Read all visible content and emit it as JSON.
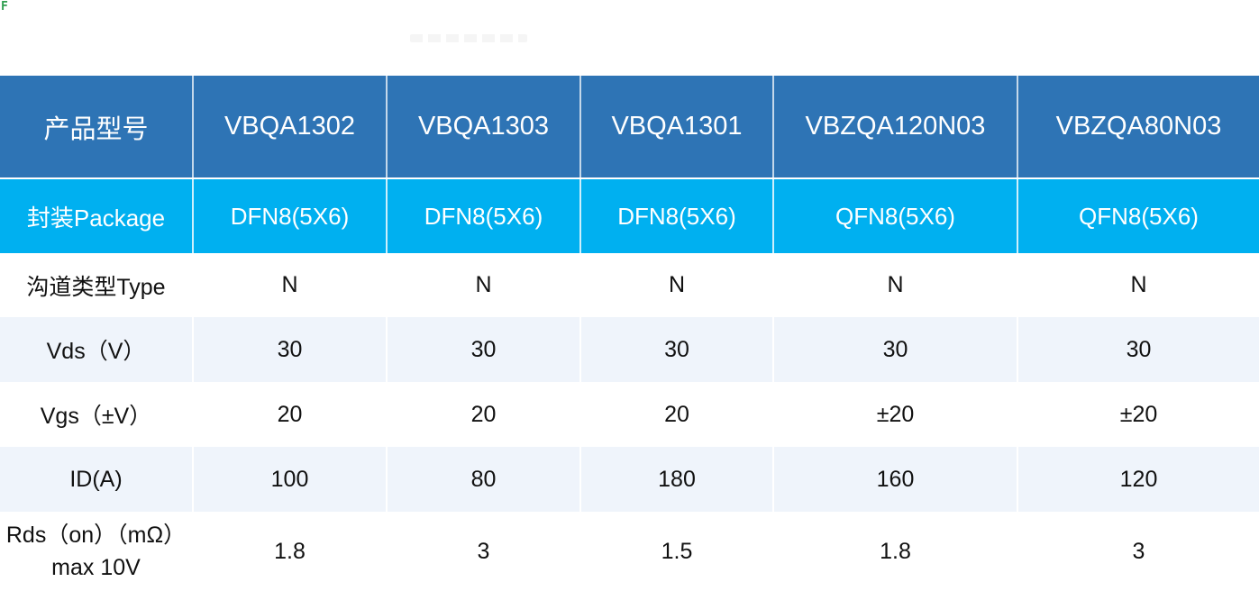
{
  "page": {
    "corner_mark": "F",
    "background": "#FFFFFF"
  },
  "colors": {
    "header_bg": "#2E74B5",
    "header_text": "#FFFFFF",
    "package_bg": "#00B0F0",
    "package_text": "#FFFFFF",
    "stripe_bg": "#EFF4FB",
    "white_row_bg": "#FFFFFF",
    "body_text": "#111111",
    "separator": "#FFFFFF",
    "corner_mark_color": "#2E9E4F"
  },
  "table": {
    "columns": [
      {
        "header": "产品型号"
      },
      {
        "header": "VBQA1302"
      },
      {
        "header": "VBQA1303"
      },
      {
        "header": "VBQA1301"
      },
      {
        "header": "VBZQA120N03"
      },
      {
        "header": "VBZQA80N03"
      }
    ],
    "rows": [
      {
        "label": "封装Package",
        "values": [
          "DFN8(5X6)",
          "DFN8(5X6)",
          "DFN8(5X6)",
          "QFN8(5X6)",
          "QFN8(5X6)"
        ]
      },
      {
        "label": "沟道类型Type",
        "values": [
          "N",
          "N",
          "N",
          "N",
          "N"
        ]
      },
      {
        "label": "Vds（V）",
        "values": [
          "30",
          "30",
          "30",
          "30",
          "30"
        ]
      },
      {
        "label": "Vgs（±V）",
        "values": [
          "20",
          "20",
          "20",
          "±20",
          "±20"
        ]
      },
      {
        "label": "ID(A)",
        "values": [
          "100",
          "80",
          "180",
          "160",
          "120"
        ]
      },
      {
        "label": "Rds（on）（mΩ）max 10V",
        "values": [
          "1.8",
          "3",
          "1.5",
          "1.8",
          "3"
        ]
      }
    ]
  }
}
